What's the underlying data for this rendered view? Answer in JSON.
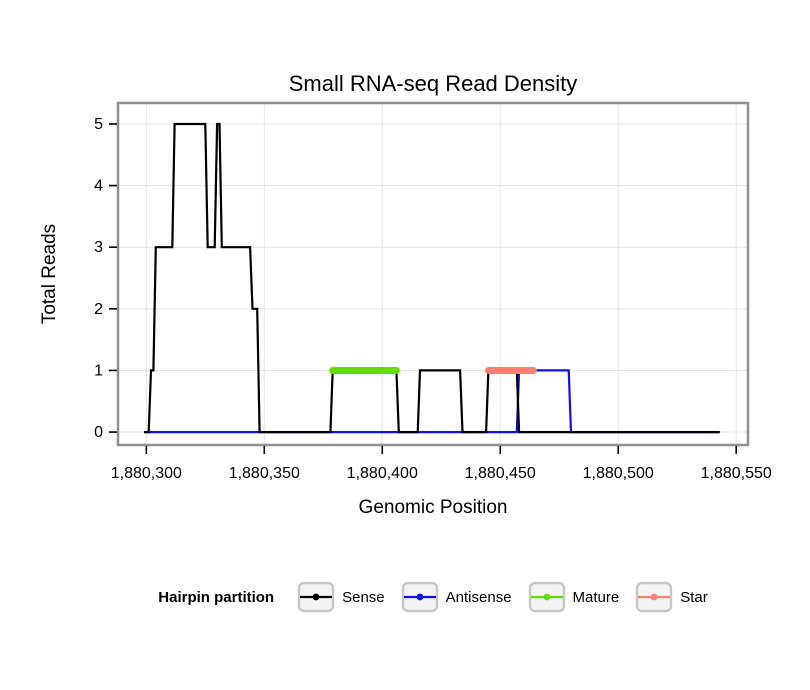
{
  "page": {
    "background": "#FFFFFF"
  },
  "chart_data": {
    "type": "line",
    "title": "Small RNA-seq Read Density",
    "xlabel": "Genomic Position",
    "ylabel": "Total Reads",
    "x_range": [
      1880288,
      1880555
    ],
    "y_range": [
      -0.21,
      5.34
    ],
    "grid": "major",
    "legend_position": "bottom",
    "x_ticks": [
      {
        "value": 1880300,
        "label": "1,880,300"
      },
      {
        "value": 1880350,
        "label": "1,880,350"
      },
      {
        "value": 1880400,
        "label": "1,880,400"
      },
      {
        "value": 1880450,
        "label": "1,880,450"
      },
      {
        "value": 1880500,
        "label": "1,880,500"
      },
      {
        "value": 1880550,
        "label": "1,880,550"
      }
    ],
    "y_ticks": [
      {
        "value": 0,
        "label": "0"
      },
      {
        "value": 1,
        "label": "1"
      },
      {
        "value": 2,
        "label": "2"
      },
      {
        "value": 3,
        "label": "3"
      },
      {
        "value": 4,
        "label": "4"
      },
      {
        "value": 5,
        "label": "5"
      }
    ],
    "series": [
      {
        "name": "Antisense",
        "color": "#1010EE",
        "width": 2.2,
        "points": [
          [
            1880300,
            0
          ],
          [
            1880457,
            0
          ],
          [
            1880458,
            1
          ],
          [
            1880479,
            1
          ],
          [
            1880480,
            0
          ],
          [
            1880543,
            0
          ]
        ]
      },
      {
        "name": "Sense",
        "color": "#000000",
        "width": 2.2,
        "points": [
          [
            1880299,
            0
          ],
          [
            1880301,
            0
          ],
          [
            1880302,
            1
          ],
          [
            1880303,
            1
          ],
          [
            1880304,
            3
          ],
          [
            1880311,
            3
          ],
          [
            1880312,
            5
          ],
          [
            1880325,
            5
          ],
          [
            1880326,
            3
          ],
          [
            1880329,
            3
          ],
          [
            1880330,
            5
          ],
          [
            1880331,
            5
          ],
          [
            1880332,
            3
          ],
          [
            1880344,
            3
          ],
          [
            1880345,
            2
          ],
          [
            1880347,
            2
          ],
          [
            1880348,
            0
          ],
          [
            1880378,
            0
          ],
          [
            1880379,
            1
          ],
          [
            1880406,
            1
          ],
          [
            1880407,
            0
          ],
          [
            1880415,
            0
          ],
          [
            1880416,
            1
          ],
          [
            1880433,
            1
          ],
          [
            1880434,
            0
          ],
          [
            1880444,
            0
          ],
          [
            1880445,
            1
          ],
          [
            1880457,
            1
          ],
          [
            1880458,
            0
          ],
          [
            1880543,
            0
          ]
        ]
      }
    ],
    "segments": [
      {
        "name": "Mature",
        "color": "#66DD00",
        "width": 7,
        "y": 1,
        "x_start": 1880379,
        "x_end": 1880406
      },
      {
        "name": "Star",
        "color": "#FA8072",
        "width": 7,
        "y": 1,
        "x_start": 1880445,
        "x_end": 1880464
      }
    ]
  },
  "legend": {
    "title": "Hairpin partition",
    "items": [
      {
        "label": "Sense",
        "color": "#000000"
      },
      {
        "label": "Antisense",
        "color": "#1010EE"
      },
      {
        "label": "Mature",
        "color": "#66DD00"
      },
      {
        "label": "Star",
        "color": "#FA8072"
      }
    ]
  },
  "style": {
    "grid_color": "#E4E4E8",
    "panel_border_color": "#909090",
    "key_box_fill": "#F4F4F4",
    "key_box_border": "#C8C8C8"
  }
}
